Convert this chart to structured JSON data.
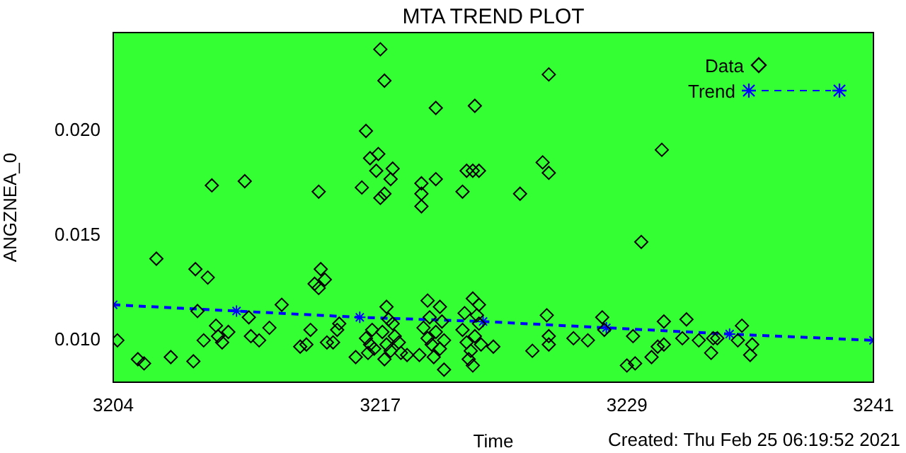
{
  "chart_data": {
    "type": "scatter",
    "title": "MTA TREND PLOT",
    "xlabel": "Time",
    "ylabel": "ANGZNEA_0",
    "xlim": [
      3204,
      3241
    ],
    "xticks": [
      3204,
      3217,
      3229,
      3241
    ],
    "ylim": [
      0.008,
      0.0247
    ],
    "yticks": [
      {
        "value": 0.01,
        "label": "0.010"
      },
      {
        "value": 0.015,
        "label": "0.015"
      },
      {
        "value": 0.02,
        "label": "0.020"
      }
    ],
    "grid": false,
    "legend": "top right",
    "annotations": [
      "Created: Thu Feb 25 06:19:52 2021"
    ],
    "series": [
      {
        "name": "Data",
        "type": "scatter",
        "marker": "diamond",
        "color": "#000000",
        "x": [
          3204.2,
          3205.2,
          3205.5,
          3206.1,
          3206.8,
          3207.9,
          3208.0,
          3208.1,
          3208.4,
          3208.6,
          3208.8,
          3209.0,
          3209.1,
          3209.3,
          3209.6,
          3210.4,
          3210.6,
          3210.7,
          3211.1,
          3211.6,
          3212.2,
          3213.1,
          3213.4,
          3213.6,
          3213.8,
          3214.0,
          3214.0,
          3214.1,
          3214.3,
          3214.4,
          3214.7,
          3214.9,
          3215.0,
          3215.8,
          3216.1,
          3216.3,
          3216.5,
          3216.3,
          3216.5,
          3216.6,
          3216.4,
          3216.7,
          3217.0,
          3217.2,
          3216.9,
          3216.8,
          3217.6,
          3217.5,
          3217.2,
          3217.0,
          3219.7,
          3219.0,
          3219.7,
          3219.0,
          3219.0,
          3221.6,
          3221.0,
          3221.2,
          3221.5,
          3221.8,
          3223.8,
          3225.2,
          3224.9,
          3225.2,
          3217.3,
          3219.3,
          3219.9,
          3221.5,
          3221.8,
          3225.1,
          3227.8,
          3218.3,
          3218.9,
          3220.1,
          3221.5,
          3222.5,
          3224.4,
          3225.2,
          3225.2,
          3226.4,
          3227.1,
          3229.0,
          3227.9,
          3217.1,
          3217.3,
          3217.5,
          3217.7,
          3217.2,
          3217.6,
          3217.9,
          3218.0,
          3217.4,
          3219.1,
          3219.3,
          3219.5,
          3219.7,
          3219.9,
          3220.1,
          3219.6,
          3220.0,
          3219.4,
          3221.0,
          3221.2,
          3221.4,
          3221.6,
          3221.8,
          3221.3,
          3221.9,
          3221.1,
          3221.7,
          3230.7,
          3229.7,
          3229.4,
          3229.3,
          3230.2,
          3230.5,
          3230.8,
          3230.8,
          3231.9,
          3231.7,
          3232.5,
          3233.1,
          3233.2,
          3233.4,
          3234.6,
          3234.4,
          3235.1,
          3235.0
        ],
        "values": [
          0.01,
          0.0091,
          0.0089,
          0.0139,
          0.0092,
          0.009,
          0.0134,
          0.0114,
          0.01,
          0.013,
          0.0174,
          0.0107,
          0.0102,
          0.0099,
          0.0104,
          0.0176,
          0.0111,
          0.0102,
          0.01,
          0.0106,
          0.0117,
          0.0097,
          0.0098,
          0.0105,
          0.0127,
          0.0171,
          0.0125,
          0.0134,
          0.0129,
          0.0099,
          0.0099,
          0.0105,
          0.0108,
          0.0092,
          0.0173,
          0.02,
          0.0187,
          0.0101,
          0.0098,
          0.0105,
          0.0094,
          0.0096,
          0.0239,
          0.0224,
          0.0189,
          0.0181,
          0.0182,
          0.0177,
          0.017,
          0.0168,
          0.0211,
          0.0175,
          0.0177,
          0.017,
          0.0164,
          0.0212,
          0.0171,
          0.0181,
          0.0181,
          0.0181,
          0.017,
          0.0227,
          0.0185,
          0.018,
          0.0116,
          0.0119,
          0.0116,
          0.012,
          0.0117,
          0.0112,
          0.0111,
          0.0093,
          0.0093,
          0.0086,
          0.0088,
          0.0097,
          0.0095,
          0.0102,
          0.0098,
          0.0101,
          0.01,
          0.0088,
          0.0105,
          0.0104,
          0.0098,
          0.0095,
          0.0102,
          0.0091,
          0.0108,
          0.0099,
          0.0094,
          0.011,
          0.0106,
          0.0101,
          0.0098,
          0.0104,
          0.0096,
          0.01,
          0.0092,
          0.0109,
          0.0111,
          0.0105,
          0.0099,
          0.0095,
          0.0102,
          0.0108,
          0.0091,
          0.0098,
          0.0113,
          0.0112,
          0.0191,
          0.0147,
          0.0089,
          0.0102,
          0.0092,
          0.0097,
          0.0098,
          0.0109,
          0.011,
          0.0101,
          0.01,
          0.0094,
          0.0101,
          0.0101,
          0.0107,
          0.01,
          0.0098,
          0.0093
        ]
      },
      {
        "name": "Trend",
        "type": "line",
        "marker": "cross",
        "line_style": "dashed",
        "color": "#0000ff",
        "x": [
          3204,
          3210,
          3216,
          3222,
          3228,
          3234,
          3241
        ],
        "values": [
          0.0117,
          0.0114,
          0.0111,
          0.0109,
          0.0106,
          0.0103,
          0.01
        ]
      }
    ]
  }
}
